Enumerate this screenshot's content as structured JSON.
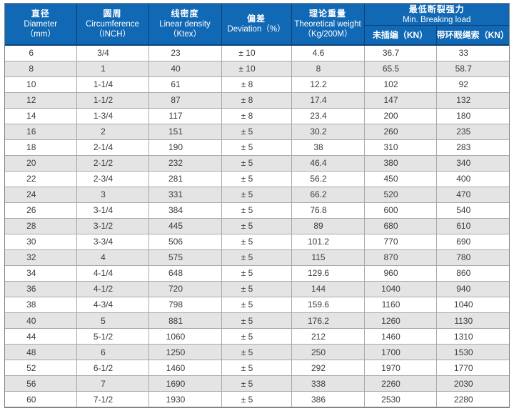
{
  "colors": {
    "header_bg": "#1168b4",
    "header_divider": "#0c4178",
    "header_text": "#ffffff",
    "row_alt_bg": "#e4e4e4",
    "grid_line": "#a9a9a9",
    "outer_border": "#828282",
    "cell_text": "#3d3d3d"
  },
  "table": {
    "header": {
      "diameter": {
        "zh": "直径",
        "en": "Diameter",
        "unit": "（mm）"
      },
      "circumference": {
        "zh": "圆周",
        "en": "Circumference",
        "unit": "（INCH）"
      },
      "linear_density": {
        "zh": "线密度",
        "en": "Linear density",
        "unit": "（Ktex）"
      },
      "deviation": {
        "zh": "偏差",
        "en": "Deviation（%）"
      },
      "theoretical_weight": {
        "zh": "理论重量",
        "en": "Theoretical weight",
        "unit": "（Kg/200M）"
      },
      "breaking_load": {
        "zh": "最低断裂强力",
        "en": "Min. Breaking load",
        "sub_unspliced": "未插编（KN）",
        "sub_eye_rope": "带环眼绳索（KN）"
      }
    },
    "column_keys": [
      "diameter",
      "circumference",
      "linear-density",
      "deviation",
      "theoretical-weight",
      "breaking-unspliced",
      "breaking-eye-rope"
    ],
    "rows": [
      [
        "6",
        "3/4",
        "23",
        "± 10",
        "4.6",
        "36.7",
        "33"
      ],
      [
        "8",
        "1",
        "40",
        "± 10",
        "8",
        "65.5",
        "58.7"
      ],
      [
        "10",
        "1-1/4",
        "61",
        "± 8",
        "12.2",
        "102",
        "92"
      ],
      [
        "12",
        "1-1/2",
        "87",
        "± 8",
        "17.4",
        "147",
        "132"
      ],
      [
        "14",
        "1-3/4",
        "117",
        "± 8",
        "23.4",
        "200",
        "180"
      ],
      [
        "16",
        "2",
        "151",
        "± 5",
        "30.2",
        "260",
        "235"
      ],
      [
        "18",
        "2-1/4",
        "190",
        "± 5",
        "38",
        "310",
        "283"
      ],
      [
        "20",
        "2-1/2",
        "232",
        "± 5",
        "46.4",
        "380",
        "340"
      ],
      [
        "22",
        "2-3/4",
        "281",
        "± 5",
        "56.2",
        "450",
        "400"
      ],
      [
        "24",
        "3",
        "331",
        "± 5",
        "66.2",
        "520",
        "470"
      ],
      [
        "26",
        "3-1/4",
        "384",
        "± 5",
        "76.8",
        "600",
        "540"
      ],
      [
        "28",
        "3-1/2",
        "445",
        "± 5",
        "89",
        "680",
        "610"
      ],
      [
        "30",
        "3-3/4",
        "506",
        "± 5",
        "101.2",
        "770",
        "690"
      ],
      [
        "32",
        "4",
        "575",
        "± 5",
        "115",
        "870",
        "780"
      ],
      [
        "34",
        "4-1/4",
        "648",
        "± 5",
        "129.6",
        "960",
        "860"
      ],
      [
        "36",
        "4-1/2",
        "720",
        "± 5",
        "144",
        "1040",
        "940"
      ],
      [
        "38",
        "4-3/4",
        "798",
        "± 5",
        "159.6",
        "1160",
        "1040"
      ],
      [
        "40",
        "5",
        "881",
        "± 5",
        "176.2",
        "1260",
        "1130"
      ],
      [
        "44",
        "5-1/2",
        "1060",
        "± 5",
        "212",
        "1460",
        "1310"
      ],
      [
        "48",
        "6",
        "1250",
        "± 5",
        "250",
        "1700",
        "1530"
      ],
      [
        "52",
        "6-1/2",
        "1460",
        "± 5",
        "292",
        "1970",
        "1770"
      ],
      [
        "56",
        "7",
        "1690",
        "± 5",
        "338",
        "2260",
        "2030"
      ],
      [
        "60",
        "7-1/2",
        "1930",
        "± 5",
        "386",
        "2530",
        "2280"
      ]
    ]
  }
}
